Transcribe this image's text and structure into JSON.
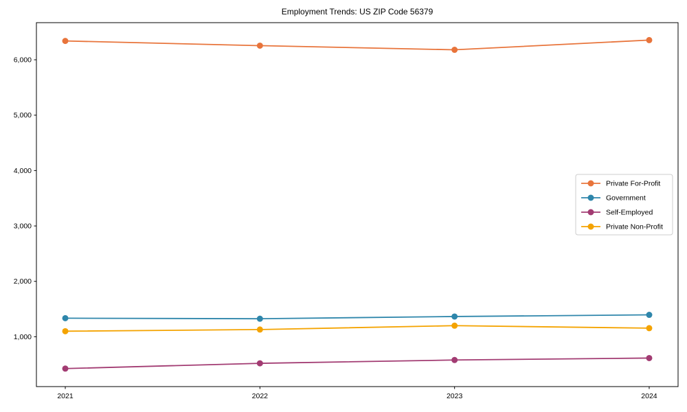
{
  "chart_data": {
    "type": "line",
    "title": "Employment Trends: US ZIP Code 56379",
    "xlabel": "",
    "ylabel": "",
    "categories": [
      "2021",
      "2022",
      "2023",
      "2024"
    ],
    "series": [
      {
        "name": "Private For-Profit",
        "color": "#E8743B",
        "values": [
          6340,
          6255,
          6180,
          6355
        ]
      },
      {
        "name": "Government",
        "color": "#2E86AB",
        "values": [
          1335,
          1325,
          1365,
          1395
        ]
      },
      {
        "name": "Self-Employed",
        "color": "#A23B72",
        "values": [
          425,
          520,
          580,
          615
        ]
      },
      {
        "name": "Private Non-Profit",
        "color": "#F4A300",
        "values": [
          1100,
          1130,
          1200,
          1155
        ]
      }
    ],
    "ylim": [
      100,
      6670
    ],
    "yticks": [
      1000,
      2000,
      3000,
      4000,
      5000,
      6000
    ],
    "ytick_labels": [
      "1,000",
      "2,000",
      "3,000",
      "4,000",
      "5,000",
      "6,000"
    ],
    "grid": false,
    "legend_position": "middle-right",
    "marker": "circle",
    "axis_color": "#000000",
    "legend_border_color": "#cccccc",
    "background": "#ffffff"
  }
}
